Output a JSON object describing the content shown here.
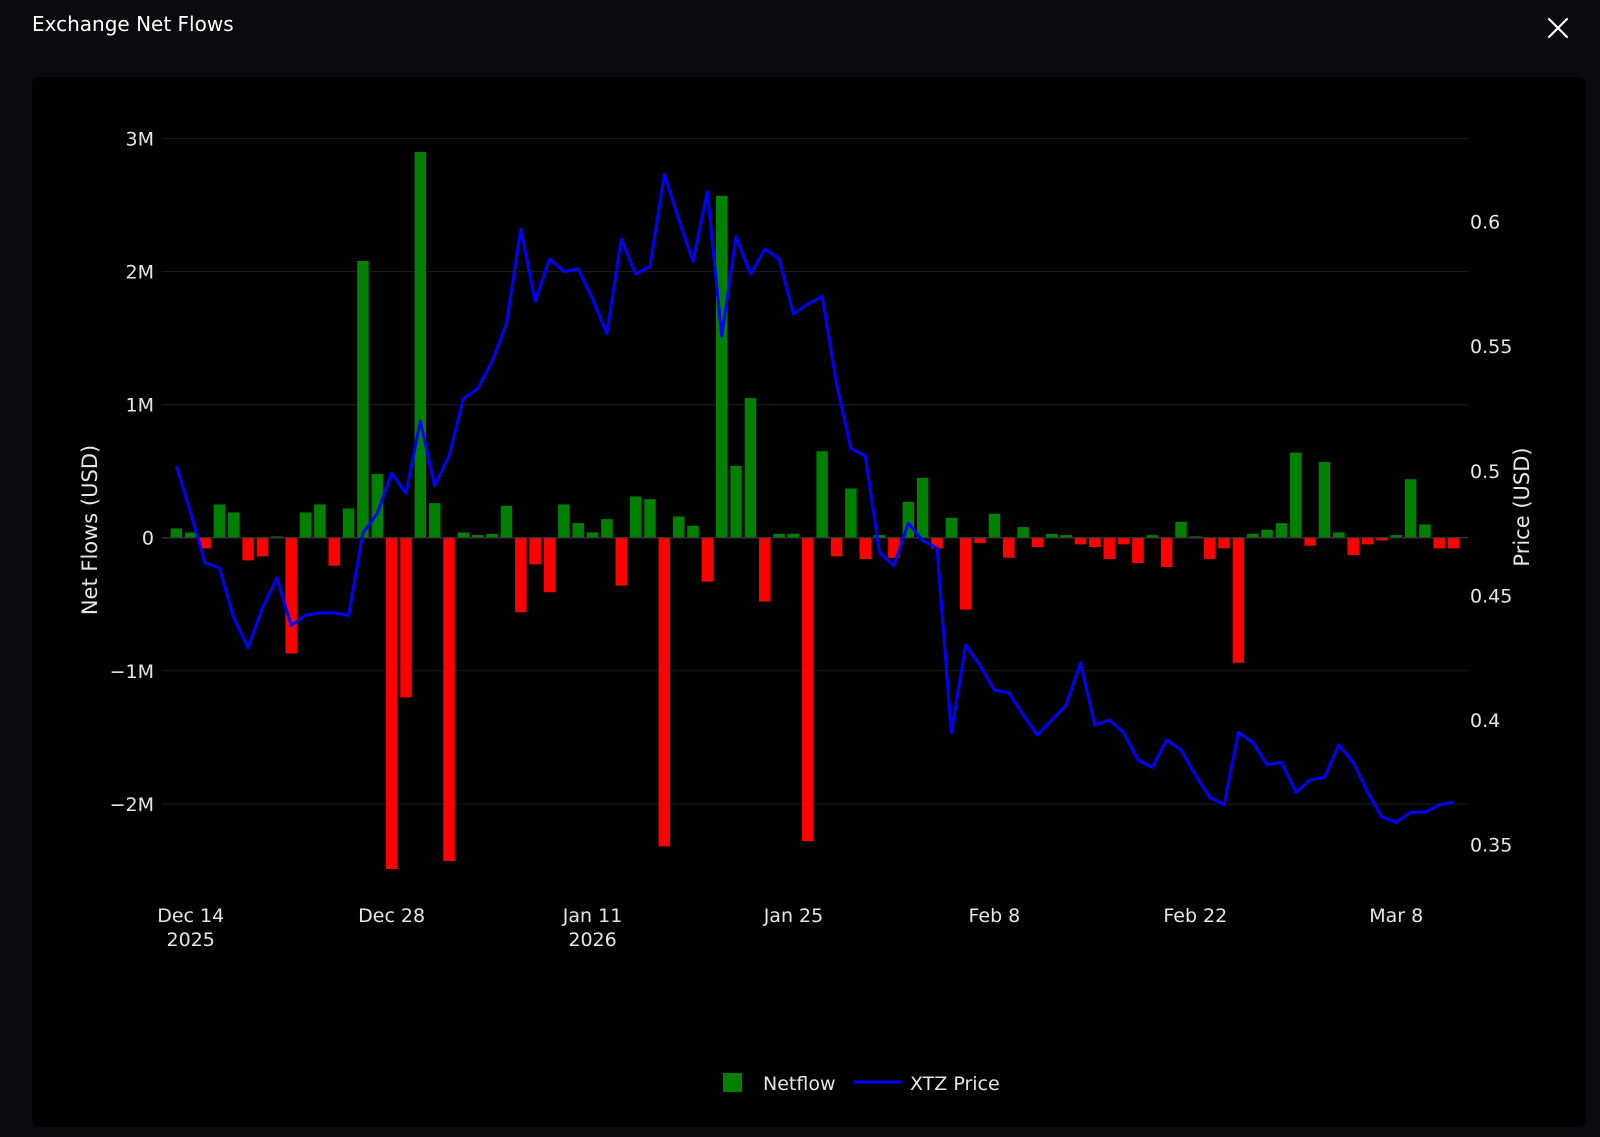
{
  "modal": {
    "title": "Exchange Net Flows",
    "close_icon": "close-icon"
  },
  "colors": {
    "background": "#0b0b0f",
    "panel": "#000000",
    "inflow": "#008000",
    "outflow": "#ff0000",
    "price_line": "#0000ff",
    "grid": "#1e1e1e",
    "text": "#e6e6e6"
  },
  "chart_data": {
    "type": "bar+line",
    "title": "",
    "x_start": "2025-12-13",
    "x_range": [
      "2025-12-12",
      "2026-03-13"
    ],
    "x_ticks": [
      {
        "date": "2025-12-14",
        "label": "Dec 14",
        "sublabel": "2025"
      },
      {
        "date": "2025-12-28",
        "label": "Dec 28",
        "sublabel": ""
      },
      {
        "date": "2026-01-11",
        "label": "Jan 11",
        "sublabel": "2026"
      },
      {
        "date": "2026-01-25",
        "label": "Jan 25",
        "sublabel": ""
      },
      {
        "date": "2026-02-08",
        "label": "Feb 8",
        "sublabel": ""
      },
      {
        "date": "2026-02-22",
        "label": "Feb 22",
        "sublabel": ""
      },
      {
        "date": "2026-03-08",
        "label": "Mar 8",
        "sublabel": ""
      }
    ],
    "y_left": {
      "label": "Net Flows (USD)",
      "range": [
        -2.55,
        3.2
      ],
      "ticks": [
        {
          "value": 3,
          "label": "3M"
        },
        {
          "value": 2,
          "label": "2M"
        },
        {
          "value": 1,
          "label": "1M"
        },
        {
          "value": 0,
          "label": "0"
        },
        {
          "value": -1,
          "label": "−1M"
        },
        {
          "value": -2,
          "label": "−2M"
        }
      ]
    },
    "y_right": {
      "label": "Price (USD)",
      "range": [
        0.337,
        0.644
      ],
      "ticks": [
        {
          "value": 0.6,
          "label": "0.6"
        },
        {
          "value": 0.55,
          "label": "0.55"
        },
        {
          "value": 0.5,
          "label": "0.5"
        },
        {
          "value": 0.45,
          "label": "0.45"
        },
        {
          "value": 0.4,
          "label": "0.4"
        },
        {
          "value": 0.35,
          "label": "0.35"
        }
      ]
    },
    "grid": true,
    "legend_position": "bottom-center",
    "series": [
      {
        "name": "Netflow",
        "type": "bar",
        "unit": "M USD",
        "values": [
          0.07,
          0.04,
          -0.08,
          0.25,
          0.19,
          -0.17,
          -0.14,
          0.01,
          -0.87,
          0.19,
          0.25,
          -0.21,
          0.22,
          2.08,
          0.48,
          -2.49,
          -1.2,
          2.9,
          0.26,
          -2.43,
          0.04,
          0.02,
          0.03,
          0.24,
          -0.56,
          -0.2,
          -0.41,
          0.25,
          0.11,
          0.04,
          0.14,
          -0.36,
          0.31,
          0.29,
          -2.32,
          0.16,
          0.09,
          -0.33,
          2.57,
          0.54,
          1.05,
          -0.48,
          0.03,
          0.03,
          -2.28,
          0.65,
          -0.14,
          0.37,
          -0.16,
          0.02,
          -0.15,
          0.27,
          0.45,
          -0.08,
          0.15,
          -0.54,
          -0.04,
          0.18,
          -0.15,
          0.08,
          -0.07,
          0.03,
          0.02,
          -0.05,
          -0.07,
          -0.16,
          -0.05,
          -0.19,
          0.02,
          -0.22,
          0.12,
          0.01,
          -0.16,
          -0.08,
          -0.94,
          0.03,
          0.06,
          0.11,
          0.64,
          -0.06,
          0.57,
          0.04,
          -0.13,
          -0.05,
          -0.02,
          0.02,
          0.44,
          0.1,
          -0.08,
          -0.08
        ]
      },
      {
        "name": "XTZ Price",
        "type": "line",
        "unit": "USD",
        "values": [
          0.502,
          0.483,
          0.463,
          0.461,
          0.441,
          0.429,
          0.445,
          0.457,
          0.438,
          0.442,
          0.443,
          0.443,
          0.442,
          0.475,
          0.483,
          0.499,
          0.491,
          0.52,
          0.494,
          0.506,
          0.529,
          0.533,
          0.544,
          0.559,
          0.597,
          0.568,
          0.585,
          0.58,
          0.581,
          0.569,
          0.555,
          0.593,
          0.579,
          0.582,
          0.619,
          0.601,
          0.584,
          0.612,
          0.554,
          0.594,
          0.579,
          0.589,
          0.585,
          0.563,
          0.567,
          0.57,
          0.535,
          0.509,
          0.506,
          0.467,
          0.462,
          0.479,
          0.472,
          0.469,
          0.395,
          0.43,
          0.422,
          0.412,
          0.411,
          0.402,
          0.394,
          0.4,
          0.406,
          0.423,
          0.398,
          0.4,
          0.395,
          0.384,
          0.381,
          0.392,
          0.388,
          0.378,
          0.369,
          0.366,
          0.395,
          0.391,
          0.382,
          0.383,
          0.371,
          0.376,
          0.377,
          0.39,
          0.383,
          0.371,
          0.361,
          0.359,
          0.363,
          0.363,
          0.366,
          0.367
        ]
      }
    ]
  }
}
